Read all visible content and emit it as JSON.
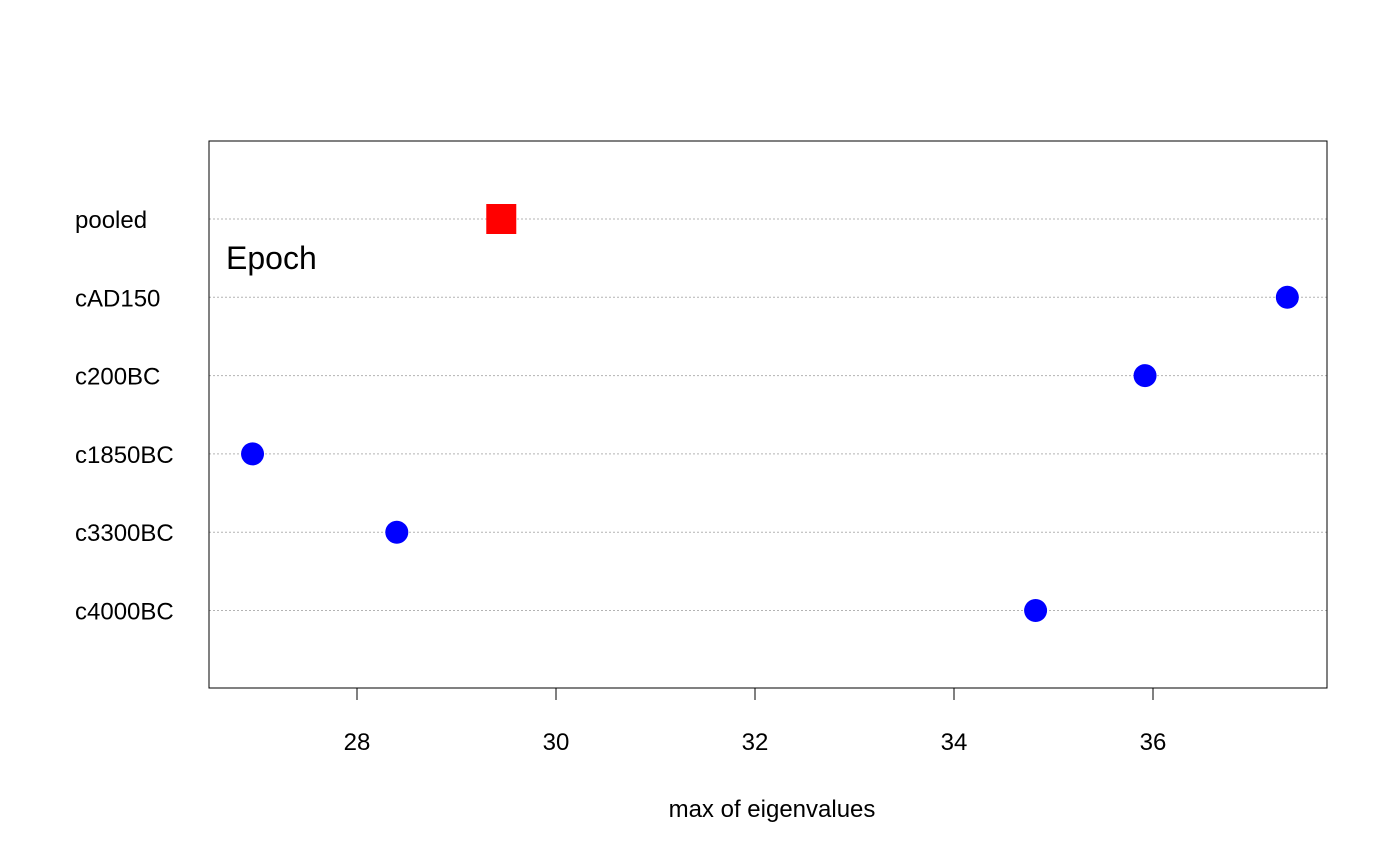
{
  "chart_data": {
    "type": "scatter",
    "subtype": "dotplot",
    "xlabel": "max of eigenvalues",
    "ylabel": "",
    "annotation": "Epoch",
    "xlim": [
      26.6,
      37.8
    ],
    "xticks": [
      28,
      30,
      32,
      34,
      36
    ],
    "grid": "horizontal dotted lines at each category",
    "categories": [
      "pooled",
      "cAD150",
      "c200BC",
      "c1850BC",
      "c3300BC",
      "c4000BC"
    ],
    "points": [
      {
        "category": "pooled",
        "x": 29.45,
        "marker": "square",
        "color": "#ff0000"
      },
      {
        "category": "cAD150",
        "x": 37.35,
        "marker": "circle",
        "color": "#0000ff"
      },
      {
        "category": "c200BC",
        "x": 35.92,
        "marker": "circle",
        "color": "#0000ff"
      },
      {
        "category": "c1850BC",
        "x": 26.95,
        "marker": "circle",
        "color": "#0000ff"
      },
      {
        "category": "c3300BC",
        "x": 28.4,
        "marker": "circle",
        "color": "#0000ff"
      },
      {
        "category": "c4000BC",
        "x": 34.82,
        "marker": "circle",
        "color": "#0000ff"
      }
    ]
  }
}
